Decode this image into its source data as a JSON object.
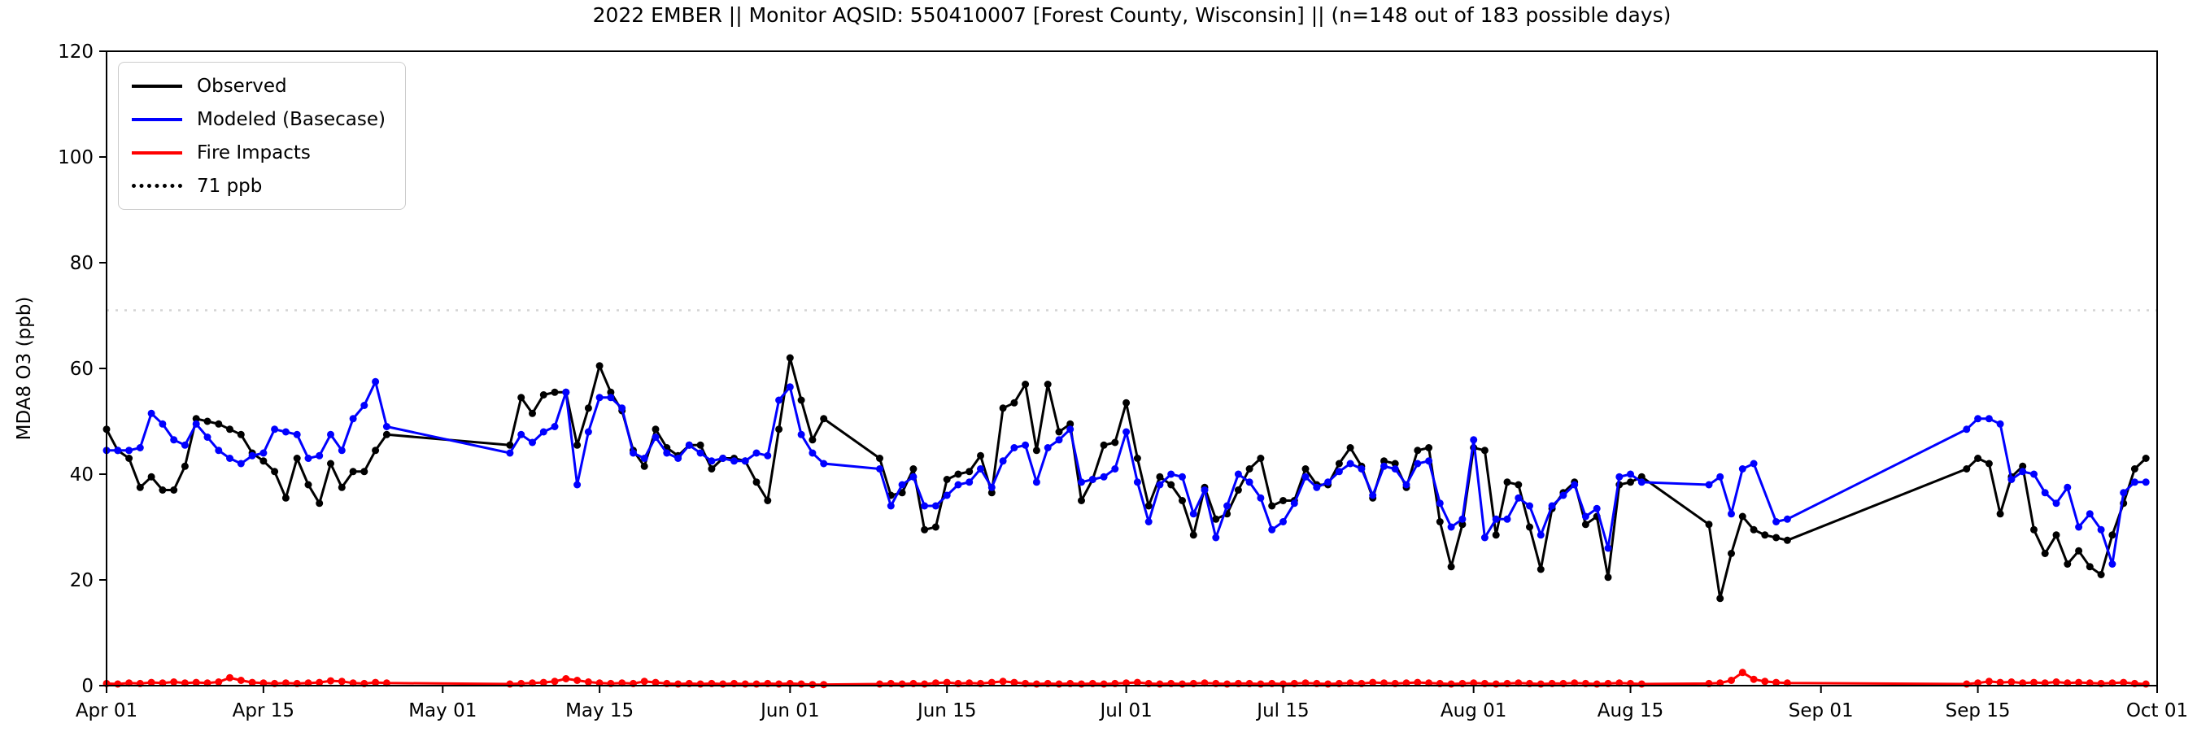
{
  "chart_data": {
    "type": "line",
    "title": "2022 EMBER || Monitor AQSID: 550410007 [Forest County, Wisconsin] || (n=148 out of 183 possible days)",
    "ylabel": "MDA8 O3 (ppb)",
    "ylim": [
      0,
      120
    ],
    "yticks": [
      0,
      20,
      40,
      60,
      80,
      100,
      120
    ],
    "x_start": "Apr 01",
    "x_end": "Oct 01",
    "days_total": 183,
    "grid": false,
    "legend_position": "upper-left",
    "x_tick_labels": [
      "Apr 01",
      "Apr 15",
      "May 01",
      "May 15",
      "Jun 01",
      "Jun 15",
      "Jul 01",
      "Jul 15",
      "Aug 01",
      "Aug 15",
      "Sep 01",
      "Sep 15",
      "Oct 01"
    ],
    "x_tick_day_index": [
      0,
      14,
      30,
      44,
      61,
      75,
      91,
      105,
      122,
      136,
      153,
      167,
      183
    ],
    "threshold": {
      "label": "71 ppb",
      "value": 71,
      "color": "#d3d3d3",
      "style": "dotted"
    },
    "series": [
      {
        "name": "Observed",
        "color": "#000000",
        "values": [
          48.5,
          44.5,
          43,
          37.5,
          39.5,
          37,
          37,
          41.5,
          50.5,
          50,
          49.5,
          48.5,
          47.5,
          44,
          42.5,
          40.5,
          35.5,
          43,
          38,
          34.5,
          42,
          37.5,
          40.5,
          40.5,
          44.5,
          47.5,
          null,
          null,
          null,
          null,
          null,
          null,
          null,
          null,
          null,
          null,
          45.5,
          54.5,
          51.5,
          55,
          55.5,
          55.5,
          45.5,
          52.5,
          60.5,
          55.5,
          52,
          44.5,
          41.5,
          48.5,
          45,
          43.5,
          45.5,
          45.5,
          41,
          43,
          43,
          42.5,
          38.5,
          35,
          48.5,
          62,
          54,
          46.5,
          50.5,
          null,
          null,
          null,
          null,
          43,
          36,
          36.5,
          41,
          29.5,
          30,
          39,
          40,
          40.5,
          43.5,
          36.5,
          52.5,
          53.5,
          57,
          44.5,
          57,
          48,
          49.5,
          35,
          39,
          45.5,
          46,
          53.5,
          43,
          34,
          39.5,
          38,
          35,
          28.5,
          37.5,
          31.5,
          32.5,
          37,
          41,
          43,
          34,
          35,
          35,
          41,
          38,
          38,
          42,
          45,
          41.5,
          35.5,
          42.5,
          42,
          37.5,
          44.5,
          45,
          31,
          22.5,
          30.5,
          45,
          44.5,
          28.5,
          38.5,
          38,
          30,
          22,
          33.5,
          36.5,
          38.5,
          30.5,
          32,
          20.5,
          38,
          38.5,
          39.5,
          null,
          null,
          null,
          null,
          null,
          30.5,
          16.5,
          25,
          32,
          29.5,
          28.5,
          28,
          27.5,
          null,
          null,
          null,
          null,
          null,
          null,
          null,
          null,
          null,
          null,
          null,
          null,
          null,
          null,
          null,
          41,
          43,
          42,
          32.5,
          39.5,
          41.5,
          29.5,
          25,
          28.5,
          23,
          25.5,
          22.5,
          21,
          28.5,
          34.5,
          41,
          43
        ]
      },
      {
        "name": "Modeled (Basecase)",
        "color": "#0000ff",
        "values": [
          44.5,
          44.5,
          44.5,
          45,
          51.5,
          49.5,
          46.5,
          45.5,
          49.5,
          47,
          44.5,
          43,
          42,
          43.5,
          44,
          48.5,
          48,
          47.5,
          43,
          43.5,
          47.5,
          44.5,
          50.5,
          53,
          57.5,
          49,
          null,
          null,
          null,
          null,
          null,
          null,
          null,
          null,
          null,
          null,
          44,
          47.5,
          46,
          48,
          49,
          55.5,
          38,
          48,
          54.5,
          54.5,
          52.5,
          44,
          43,
          47,
          44,
          43,
          45.5,
          44,
          42.5,
          43,
          42.5,
          42.5,
          44,
          43.5,
          54,
          56.5,
          47.5,
          44,
          42,
          null,
          null,
          null,
          null,
          41,
          34,
          38,
          39.5,
          34,
          34,
          36,
          38,
          38.5,
          41,
          37.5,
          42.5,
          45,
          45.5,
          38.5,
          45,
          46.5,
          48.5,
          38.5,
          39,
          39.5,
          41,
          48,
          38.5,
          31,
          38,
          40,
          39.5,
          32.5,
          37,
          28,
          34,
          40,
          38.5,
          35.5,
          29.5,
          31,
          34.5,
          39.5,
          37.5,
          38.5,
          40.5,
          42,
          41,
          36,
          41.5,
          41,
          38,
          42,
          42.5,
          34.5,
          30,
          31.5,
          46.5,
          28,
          31.5,
          31.5,
          35.5,
          34,
          28.5,
          34,
          36,
          38,
          32,
          33.5,
          26,
          39.5,
          40,
          38.5,
          null,
          null,
          null,
          null,
          null,
          38,
          39.5,
          32.5,
          41,
          42,
          null,
          31,
          31.5,
          null,
          null,
          null,
          null,
          null,
          null,
          null,
          null,
          null,
          null,
          null,
          null,
          null,
          null,
          null,
          48.5,
          50.5,
          50.5,
          49.5,
          39,
          40.5,
          40,
          36.5,
          34.5,
          37.5,
          30,
          32.5,
          29.5,
          23,
          36.5,
          38.5,
          38.5
        ]
      },
      {
        "name": "Fire Impacts",
        "color": "#ff0000",
        "values": [
          0.4,
          0.3,
          0.5,
          0.4,
          0.6,
          0.5,
          0.7,
          0.5,
          0.6,
          0.5,
          0.7,
          1.5,
          1,
          0.6,
          0.5,
          0.4,
          0.5,
          0.4,
          0.5,
          0.6,
          0.9,
          0.8,
          0.5,
          0.4,
          0.6,
          0.5,
          null,
          null,
          null,
          null,
          null,
          null,
          null,
          null,
          null,
          null,
          0.3,
          0.4,
          0.5,
          0.6,
          0.8,
          1.3,
          1,
          0.7,
          0.5,
          0.4,
          0.5,
          0.4,
          0.8,
          0.6,
          0.4,
          0.3,
          0.4,
          0.3,
          0.4,
          0.3,
          0.4,
          0.3,
          0.3,
          0.4,
          0.3,
          0.4,
          0.3,
          0.2,
          0.2,
          null,
          null,
          null,
          null,
          0.3,
          0.4,
          0.3,
          0.4,
          0.3,
          0.5,
          0.6,
          0.4,
          0.5,
          0.4,
          0.6,
          0.8,
          0.6,
          0.4,
          0.3,
          0.4,
          0.3,
          0.4,
          0.3,
          0.4,
          0.3,
          0.4,
          0.5,
          0.6,
          0.4,
          0.3,
          0.4,
          0.3,
          0.4,
          0.5,
          0.4,
          0.3,
          0.4,
          0.4,
          0.3,
          0.4,
          0.3,
          0.4,
          0.5,
          0.4,
          0.3,
          0.4,
          0.5,
          0.4,
          0.6,
          0.5,
          0.4,
          0.5,
          0.6,
          0.5,
          0.4,
          0.3,
          0.4,
          0.5,
          0.4,
          0.3,
          0.4,
          0.5,
          0.4,
          0.3,
          0.4,
          0.4,
          0.5,
          0.4,
          0.3,
          0.4,
          0.5,
          0.4,
          0.3,
          null,
          null,
          null,
          null,
          null,
          0.4,
          0.5,
          1,
          2.5,
          1.2,
          0.8,
          0.6,
          0.5,
          null,
          null,
          null,
          null,
          null,
          null,
          null,
          null,
          null,
          null,
          null,
          null,
          null,
          null,
          null,
          0.3,
          0.5,
          0.8,
          0.6,
          0.7,
          0.5,
          0.6,
          0.5,
          0.7,
          0.5,
          0.6,
          0.5,
          0.4,
          0.5,
          0.6,
          0.4,
          0.3
        ]
      }
    ]
  },
  "legend": {
    "items": [
      {
        "label": "Observed"
      },
      {
        "label": "Modeled (Basecase)"
      },
      {
        "label": "Fire Impacts"
      },
      {
        "label": "71 ppb"
      }
    ]
  }
}
